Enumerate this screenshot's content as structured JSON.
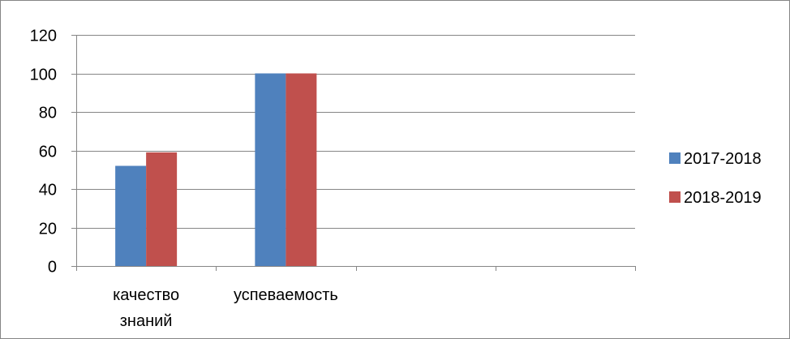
{
  "chart_data": {
    "type": "bar",
    "categories": [
      "качество знаний",
      "успеваемость",
      "",
      ""
    ],
    "category_label_lines": [
      [
        "качество",
        "знаний"
      ],
      [
        "успеваемость"
      ],
      [],
      []
    ],
    "series": [
      {
        "name": "2017-2018",
        "color": "#4F81BD",
        "values": [
          52,
          100,
          null,
          null
        ]
      },
      {
        "name": "2018-2019",
        "color": "#C0504D",
        "values": [
          59,
          100,
          null,
          null
        ]
      }
    ],
    "ylim": [
      0,
      120
    ],
    "yticks": [
      0,
      20,
      40,
      60,
      80,
      100,
      120
    ],
    "grid": true,
    "legend_position": "right"
  }
}
